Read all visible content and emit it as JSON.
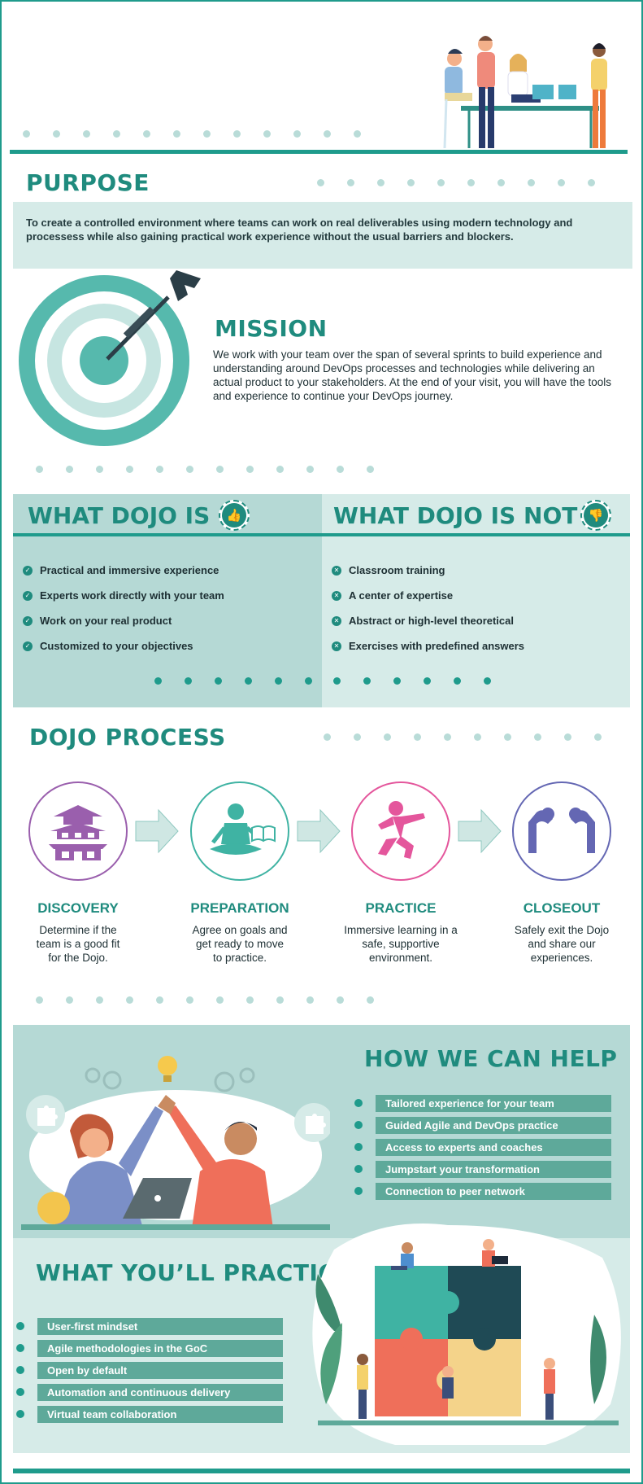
{
  "purpose": {
    "title": "PURPOSE",
    "text": "To create a controlled environment where teams can work on real deliverables using modern technology and processess while also gaining practical work experience without the usual barriers and blockers."
  },
  "mission": {
    "title": "MISSION",
    "text": "We work with your team over the span of several sprints to build experience and understanding around DevOps processes and technologies while delivering an actual product to your stakeholders. At the end of your visit, you will have the tools and experience to continue your DevOps journey."
  },
  "dojo_is": {
    "title": "WHAT DOJO IS",
    "icon": "thumbs-up-icon",
    "items": [
      "Practical and immersive experience",
      "Experts work directly with your team",
      "Work on your real product",
      "Customized to your objectives"
    ]
  },
  "dojo_is_not": {
    "title": "WHAT DOJO IS NOT",
    "icon": "thumbs-down-icon",
    "items": [
      "Classroom training",
      "A center of expertise",
      "Abstract or high-level theoretical",
      "Exercises with predefined answers"
    ]
  },
  "process": {
    "title": "DOJO PROCESS",
    "steps": [
      {
        "title": "DISCOVERY",
        "desc": "Determine if the team is a good fit for the Dojo.",
        "icon": "pagoda-icon",
        "color": "#9a5fad"
      },
      {
        "title": "PREPARATION",
        "desc": "Agree on goals and get ready to move to practice.",
        "icon": "meditation-reading-icon",
        "color": "#3fb3a3"
      },
      {
        "title": "PRACTICE",
        "desc": "Immersive learning in a safe, supportive environment.",
        "icon": "martial-arts-icon",
        "color": "#e4569c"
      },
      {
        "title": "CLOSEOUT",
        "desc": "Safely exit the Dojo and share our experiences.",
        "icon": "bow-icon",
        "color": "#6467b3"
      }
    ]
  },
  "help": {
    "title": "HOW WE CAN HELP",
    "items": [
      "Tailored experience for your team",
      "Guided Agile and DevOps practice",
      "Access to experts and coaches",
      "Jumpstart your transformation",
      "Connection to peer network"
    ]
  },
  "practice": {
    "title": "WHAT YOU’LL PRACTICE",
    "items": [
      "User-first mindset",
      "Agile methodologies in the GoC",
      "Open by default",
      "Automation and continuous delivery",
      "Virtual team collaboration"
    ]
  },
  "colors": {
    "accent": "#1f9b8c",
    "light": "#d6ebe8",
    "mid": "#b5d9d5",
    "coral": "#ef6f5a"
  }
}
